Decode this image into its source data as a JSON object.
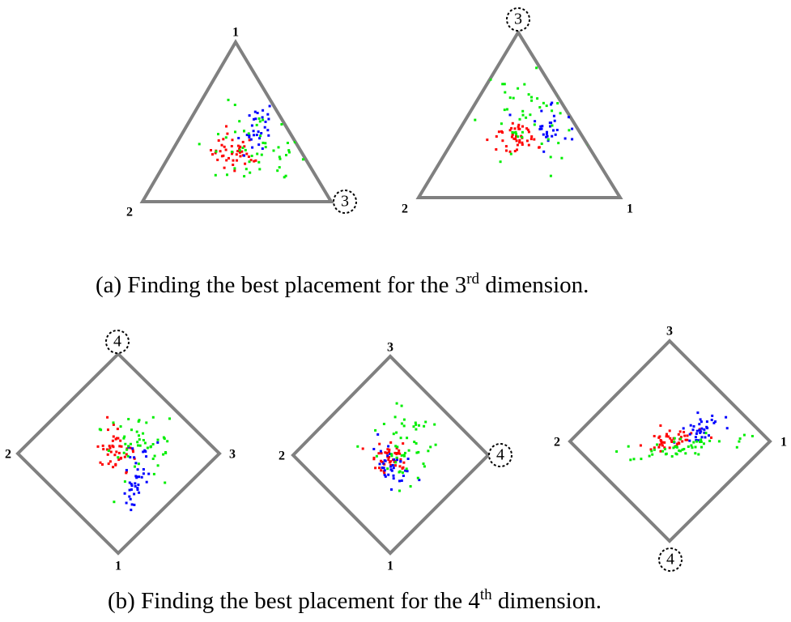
{
  "panels": [
    {
      "shape": "triangle",
      "vertex_labels": [
        "1",
        "2",
        "3"
      ],
      "circled": "3",
      "best": false
    },
    {
      "shape": "triangle",
      "vertex_labels": [
        "3",
        "2",
        "1"
      ],
      "circled": "3",
      "best": true
    },
    {
      "shape": "diamond",
      "vertex_labels": [
        "4",
        "2",
        "3",
        "1"
      ],
      "circled": "4",
      "best": false
    },
    {
      "shape": "diamond",
      "vertex_labels": [
        "3",
        "2",
        "4",
        "1"
      ],
      "circled": "4",
      "best": false
    },
    {
      "shape": "diamond",
      "vertex_labels": [
        "3",
        "2",
        "1",
        "4"
      ],
      "circled": "4",
      "best": true
    }
  ],
  "captions": {
    "a": {
      "prefix": "(a)  Finding the best placement for the 3",
      "sup": "rd",
      "suffix": " dimension."
    },
    "b": {
      "prefix": "(b)  Finding the best placement for the 4",
      "sup": "th",
      "suffix": " dimension."
    }
  },
  "colors": {
    "frame": "#808080",
    "class_1": "#ff0000",
    "class_2": "#0000ff",
    "class_3": "#00ee00"
  }
}
